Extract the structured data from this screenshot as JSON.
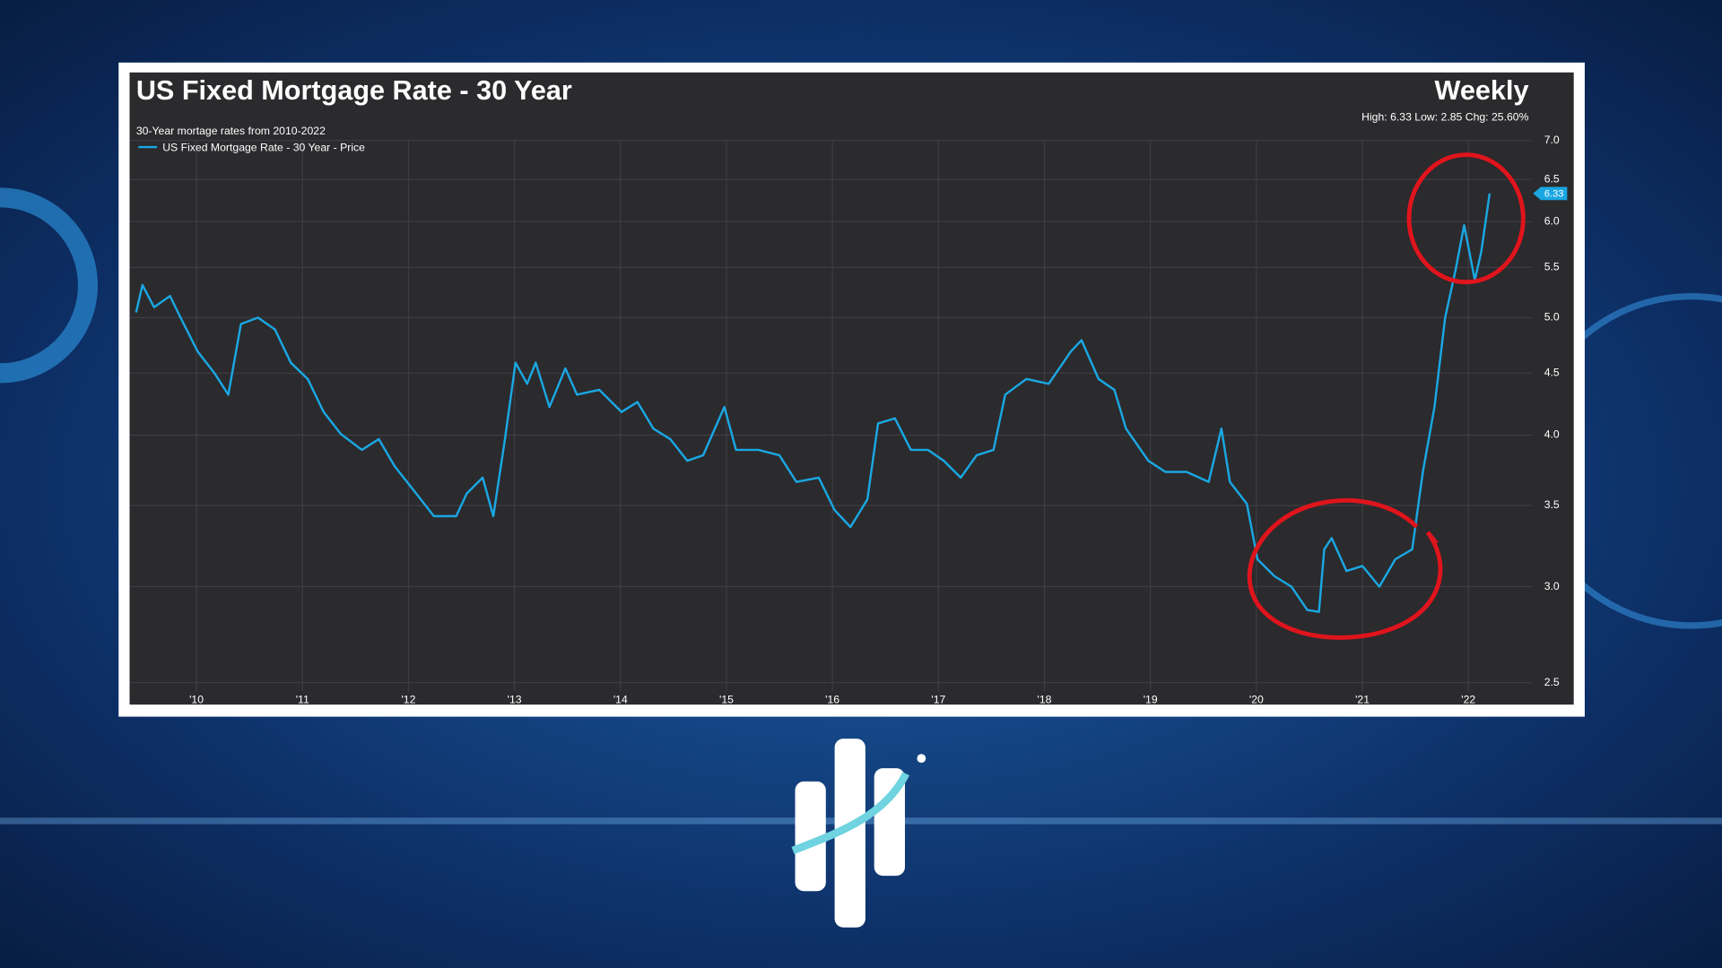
{
  "chart_data": {
    "type": "line",
    "title": "US Fixed Mortgage Rate - 30 Year",
    "frequency": "Weekly",
    "stats": "High: 6.33 Low: 2.85 Chg: 25.60%",
    "subtitle": "30-Year mortage rates from 2010-2022",
    "current_value": 6.33,
    "log_scale": true,
    "grid": true,
    "legend": "upper left",
    "xlim": [
      2009.4,
      2022.6
    ],
    "xticks": [
      {
        "value": 2010,
        "label": "'10"
      },
      {
        "value": 2011,
        "label": "'11"
      },
      {
        "value": 2012,
        "label": "'12"
      },
      {
        "value": 2013,
        "label": "'13"
      },
      {
        "value": 2014,
        "label": "'14"
      },
      {
        "value": 2015,
        "label": "'15"
      },
      {
        "value": 2016,
        "label": "'16"
      },
      {
        "value": 2017,
        "label": "'17"
      },
      {
        "value": 2018,
        "label": "'18"
      },
      {
        "value": 2019,
        "label": "'19"
      },
      {
        "value": 2020,
        "label": "'20"
      },
      {
        "value": 2021,
        "label": "'21"
      },
      {
        "value": 2022,
        "label": "'22"
      }
    ],
    "ylim": [
      2.5,
      7.0
    ],
    "yticks": [
      2.5,
      {
        "value": 3,
        "label": "3.0"
      },
      3.5,
      {
        "value": 4,
        "label": "4.0"
      },
      4.5,
      {
        "value": 5,
        "label": "5.0"
      },
      5.5,
      {
        "value": 6,
        "label": "6.0"
      },
      6.5,
      {
        "value": 7,
        "label": "7.0"
      }
    ],
    "x": [
      2009.43,
      2009.49,
      2009.6,
      2009.75,
      2009.85,
      2010.01,
      2010.17,
      2010.3,
      2010.42,
      2010.58,
      2010.74,
      2010.89,
      2011.05,
      2011.2,
      2011.36,
      2011.56,
      2011.72,
      2011.87,
      2012.03,
      2012.24,
      2012.45,
      2012.55,
      2012.7,
      2012.8,
      2012.91,
      2013.01,
      2013.12,
      2013.2,
      2013.33,
      2013.48,
      2013.59,
      2013.8,
      2014.01,
      2014.16,
      2014.31,
      2014.47,
      2014.63,
      2014.78,
      2014.98,
      2015.09,
      2015.3,
      2015.5,
      2015.66,
      2015.87,
      2016.02,
      2016.17,
      2016.33,
      2016.43,
      2016.59,
      2016.74,
      2016.9,
      2017.05,
      2017.21,
      2017.36,
      2017.52,
      2017.63,
      2017.83,
      2018.04,
      2018.25,
      2018.35,
      2018.51,
      2018.66,
      2018.77,
      2018.98,
      2019.14,
      2019.34,
      2019.55,
      2019.67,
      2019.75,
      2019.91,
      2020.01,
      2020.17,
      2020.33,
      2020.48,
      2020.59,
      2020.64,
      2020.71,
      2020.85,
      2021.0,
      2021.16,
      2021.31,
      2021.47,
      2021.57,
      2021.68,
      2021.78,
      2021.88,
      2021.96,
      2022.06,
      2022.12,
      2022.2
    ],
    "series": [
      {
        "name": "US Fixed Mortgage Rate - 30 Year - Price",
        "color": "#1aa7e2",
        "values": [
          5.05,
          5.32,
          5.1,
          5.21,
          5.0,
          4.69,
          4.5,
          4.32,
          4.94,
          5.0,
          4.89,
          4.59,
          4.45,
          4.18,
          4.01,
          3.89,
          3.97,
          3.77,
          3.62,
          3.43,
          3.43,
          3.58,
          3.69,
          3.43,
          3.97,
          4.59,
          4.41,
          4.59,
          4.22,
          4.54,
          4.32,
          4.36,
          4.18,
          4.26,
          4.05,
          3.97,
          3.81,
          3.85,
          4.22,
          3.89,
          3.89,
          3.85,
          3.66,
          3.69,
          3.47,
          3.36,
          3.54,
          4.09,
          4.13,
          3.89,
          3.89,
          3.81,
          3.69,
          3.85,
          3.89,
          4.32,
          4.45,
          4.41,
          4.69,
          4.79,
          4.45,
          4.36,
          4.05,
          3.81,
          3.73,
          3.73,
          3.66,
          4.05,
          3.66,
          3.51,
          3.16,
          3.06,
          3.0,
          2.87,
          2.86,
          3.22,
          3.29,
          3.09,
          3.12,
          3.0,
          3.16,
          3.22,
          3.73,
          4.22,
          5.0,
          5.48,
          5.96,
          5.37,
          5.66,
          6.33
        ]
      }
    ]
  }
}
